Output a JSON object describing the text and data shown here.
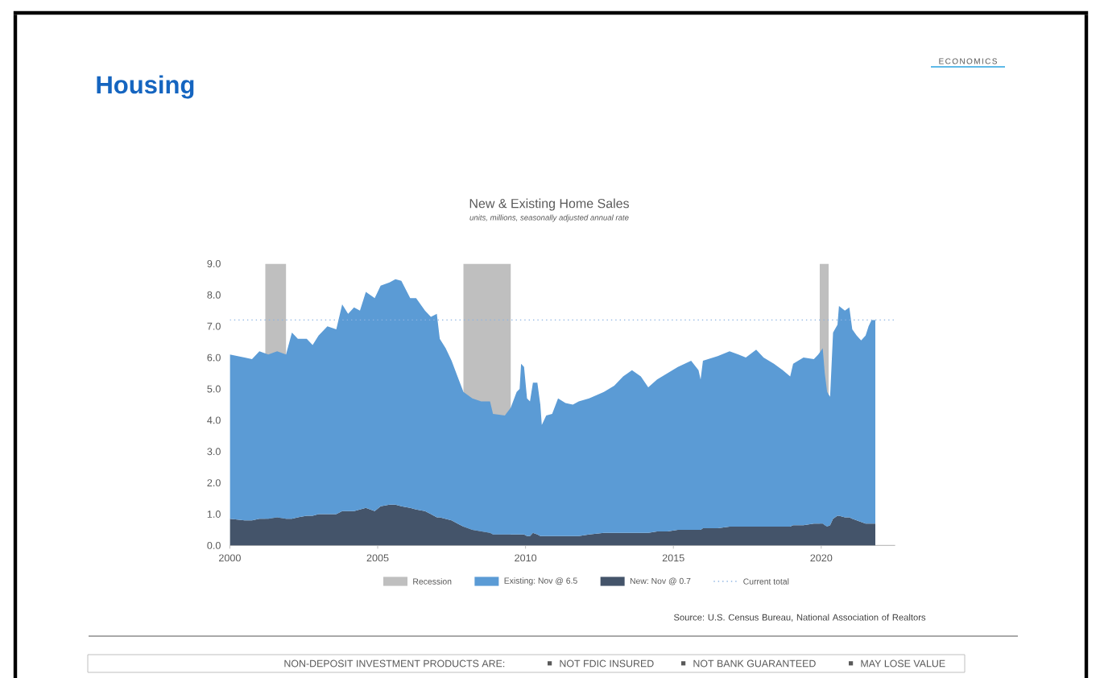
{
  "chart_data": {
    "type": "area",
    "title": "New & Existing Home Sales",
    "subtitle": "units, millions, seasonally adjusted annual rate",
    "x": [
      2000.0,
      2000.5,
      2000.75,
      2001.0,
      2001.3,
      2001.6,
      2001.9,
      2002.1,
      2002.3,
      2002.6,
      2002.8,
      2003.0,
      2003.3,
      2003.6,
      2003.8,
      2004.0,
      2004.2,
      2004.4,
      2004.6,
      2004.9,
      2005.1,
      2005.4,
      2005.6,
      2005.8,
      2006.1,
      2006.3,
      2006.6,
      2006.8,
      2007.0,
      2007.1,
      2007.3,
      2007.5,
      2007.7,
      2007.9,
      2008.2,
      2008.5,
      2008.8,
      2008.9,
      2009.3,
      2009.5,
      2009.7,
      2009.8,
      2009.85,
      2009.95,
      2010.05,
      2010.15,
      2010.25,
      2010.4,
      2010.5,
      2010.55,
      2010.7,
      2010.9,
      2011.1,
      2011.35,
      2011.6,
      2011.8,
      2012.15,
      2012.65,
      2013.0,
      2013.3,
      2013.6,
      2013.9,
      2014.15,
      2014.45,
      2014.8,
      2015.15,
      2015.6,
      2015.85,
      2015.92,
      2016.0,
      2016.5,
      2016.9,
      2017.2,
      2017.45,
      2017.8,
      2018.05,
      2018.4,
      2018.7,
      2018.95,
      2019.05,
      2019.4,
      2019.75,
      2019.9,
      2020.05,
      2020.12,
      2020.2,
      2020.3,
      2020.4,
      2020.55,
      2020.6,
      2020.8,
      2020.95,
      2021.05,
      2021.2,
      2021.35,
      2021.5,
      2021.6,
      2021.7,
      2021.83
    ],
    "series": [
      {
        "name": "New: Nov @ 0.7",
        "color": "#44546a",
        "values": [
          0.85,
          0.8,
          0.8,
          0.85,
          0.85,
          0.9,
          0.85,
          0.85,
          0.9,
          0.95,
          0.95,
          1.0,
          1.0,
          1.0,
          1.1,
          1.1,
          1.1,
          1.15,
          1.2,
          1.1,
          1.25,
          1.3,
          1.3,
          1.25,
          1.2,
          1.15,
          1.1,
          1.0,
          0.9,
          0.9,
          0.85,
          0.8,
          0.7,
          0.6,
          0.5,
          0.45,
          0.4,
          0.35,
          0.35,
          0.35,
          0.35,
          0.35,
          0.35,
          0.35,
          0.3,
          0.3,
          0.4,
          0.35,
          0.3,
          0.3,
          0.3,
          0.3,
          0.3,
          0.3,
          0.3,
          0.3,
          0.35,
          0.4,
          0.4,
          0.4,
          0.4,
          0.4,
          0.4,
          0.45,
          0.45,
          0.5,
          0.5,
          0.5,
          0.5,
          0.55,
          0.55,
          0.6,
          0.6,
          0.6,
          0.6,
          0.6,
          0.6,
          0.6,
          0.6,
          0.65,
          0.65,
          0.7,
          0.7,
          0.7,
          0.65,
          0.6,
          0.65,
          0.85,
          0.95,
          0.95,
          0.9,
          0.9,
          0.85,
          0.8,
          0.75,
          0.7,
          0.7,
          0.7,
          0.7
        ]
      },
      {
        "name": "Existing: Nov @ 6.5",
        "color": "#5b9bd5",
        "values": [
          5.25,
          5.2,
          5.15,
          5.35,
          5.25,
          5.3,
          5.25,
          5.95,
          5.7,
          5.65,
          5.45,
          5.7,
          6.0,
          5.9,
          6.6,
          6.3,
          6.5,
          6.35,
          6.9,
          6.8,
          7.05,
          7.1,
          7.2,
          7.2,
          6.7,
          6.75,
          6.4,
          6.3,
          6.5,
          5.7,
          5.45,
          5.1,
          4.7,
          4.3,
          4.2,
          4.15,
          4.2,
          3.85,
          3.8,
          4.05,
          4.55,
          4.65,
          5.45,
          5.35,
          4.4,
          4.3,
          4.8,
          4.85,
          4.2,
          3.55,
          3.85,
          3.9,
          4.4,
          4.25,
          4.2,
          4.3,
          4.35,
          4.5,
          4.7,
          5.0,
          5.2,
          5.0,
          4.65,
          4.85,
          5.05,
          5.2,
          5.4,
          5.1,
          4.8,
          5.35,
          5.5,
          5.6,
          5.5,
          5.4,
          5.65,
          5.4,
          5.2,
          5.0,
          4.8,
          5.15,
          5.35,
          5.25,
          5.4,
          5.6,
          4.85,
          4.3,
          4.1,
          5.95,
          6.1,
          6.7,
          6.6,
          6.7,
          6.05,
          5.9,
          5.8,
          6.0,
          6.3,
          6.5,
          6.5
        ]
      }
    ],
    "stacked": true,
    "xlim": [
      2000,
      2022.5
    ],
    "xticks": [
      2000,
      2005,
      2010,
      2015,
      2020
    ],
    "ylim": [
      0,
      9
    ],
    "yticks": [
      {
        "value": 0,
        "label": "0.0"
      },
      {
        "value": 1,
        "label": "1.0"
      },
      {
        "value": 2,
        "label": "2.0"
      },
      {
        "value": 3,
        "label": "3.0"
      },
      {
        "value": 4,
        "label": "4.0"
      },
      {
        "value": 5,
        "label": "5.0"
      },
      {
        "value": 6,
        "label": "6.0"
      },
      {
        "value": 7,
        "label": "7.0"
      },
      {
        "value": 8,
        "label": "8.0"
      },
      {
        "value": 9,
        "label": "9.0"
      }
    ],
    "bands": [
      {
        "axis": "x",
        "from": 2001.2,
        "to": 2001.9,
        "label": "Recession",
        "color": "#bfbfbf"
      },
      {
        "axis": "x",
        "from": 2007.9,
        "to": 2009.5,
        "color": "#bfbfbf"
      },
      {
        "axis": "x",
        "from": 2019.95,
        "to": 2020.25,
        "color": "#bfbfbf"
      }
    ],
    "ref_lines": [
      {
        "axis": "y",
        "value": 7.2,
        "label": "Current total",
        "color": "#8db4e2",
        "line_style": "dotted"
      }
    ],
    "legend": "bottom",
    "annotations": [
      "ECONOMICS",
      "Housing",
      "Source: U.S. Census Bureau, National Association of Realtors",
      "NON-DEPOSIT INVESTMENT PRODUCTS ARE:",
      "NOT FDIC INSURED",
      "NOT BANK GUARANTEED",
      "MAY LOSE VALUE"
    ]
  }
}
